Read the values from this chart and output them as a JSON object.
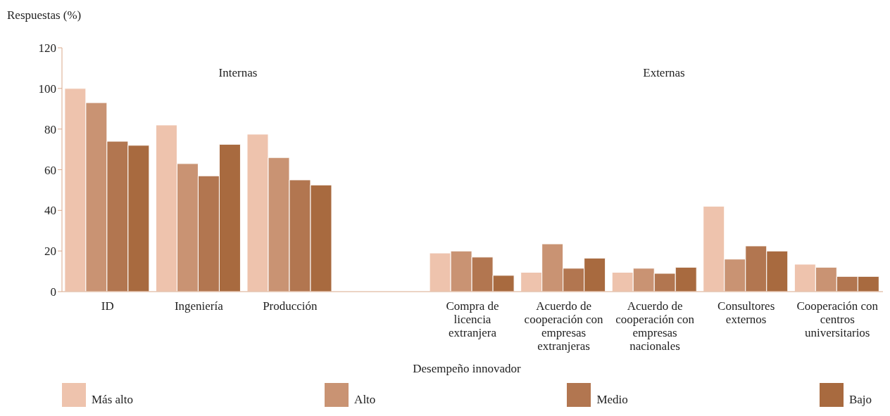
{
  "chart_data": {
    "type": "bar",
    "ylabel": "Respuestas (%)",
    "legend_title": "Desempeño innovador",
    "annotations": [
      "Internas",
      "Externas"
    ],
    "categories": [
      "ID",
      "Ingeniería",
      "Producción",
      null,
      "Compra de licencia extranjera",
      "Acuerdo de cooperación con empresas extranjeras",
      "Acuerdo de cooperación con empresas nacionales",
      "Consultores externos",
      "Cooperación con centros universitarios"
    ],
    "series": [
      {
        "name": "Más alto",
        "color": "#eec3ad",
        "values": [
          100,
          82,
          77.5,
          null,
          19,
          9.5,
          9.5,
          42,
          13.5
        ]
      },
      {
        "name": "Alto",
        "color": "#c99373",
        "values": [
          93,
          63,
          66,
          null,
          20,
          23.5,
          11.5,
          16,
          12
        ]
      },
      {
        "name": "Medio",
        "color": "#b27650",
        "values": [
          74,
          57,
          55,
          null,
          17,
          11.5,
          9,
          22.5,
          7.5
        ]
      },
      {
        "name": "Bajo",
        "color": "#a86a3f",
        "values": [
          72,
          72.5,
          52.5,
          null,
          8,
          16.5,
          12,
          20,
          7.5
        ]
      }
    ],
    "ylim": [
      0,
      120
    ],
    "yticks": [
      0,
      20,
      40,
      60,
      80,
      100,
      120
    ],
    "grid": false,
    "legend": "bottom"
  }
}
